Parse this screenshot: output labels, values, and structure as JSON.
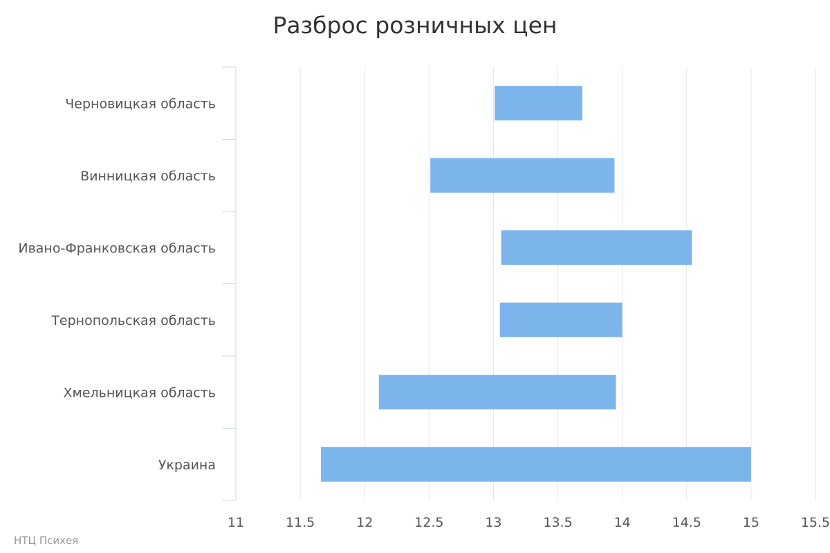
{
  "chart_data": {
    "type": "bar",
    "orientation": "horizontal",
    "title": "Разброс розничных цен",
    "categories": [
      "Черновицкая область",
      "Винницкая область",
      "Ивано-Франковская область",
      "Тернопольская область",
      "Хмельницкая область",
      "Украина"
    ],
    "series": [
      {
        "low": [
          13.01,
          12.51,
          13.06,
          13.05,
          12.11,
          11.66
        ],
        "high": [
          13.69,
          13.94,
          14.54,
          14.0,
          13.95,
          15.0
        ],
        "color": "#7cb5ec"
      }
    ],
    "xlim": [
      11,
      15.5
    ],
    "xticks": [
      "11",
      "11.5",
      "12",
      "12.5",
      "13",
      "13.5",
      "14",
      "14.5",
      "15",
      "15.5"
    ],
    "xlabel": "",
    "ylabel": "",
    "grid": true,
    "legend": "none"
  },
  "credits": "НТЦ Психея"
}
